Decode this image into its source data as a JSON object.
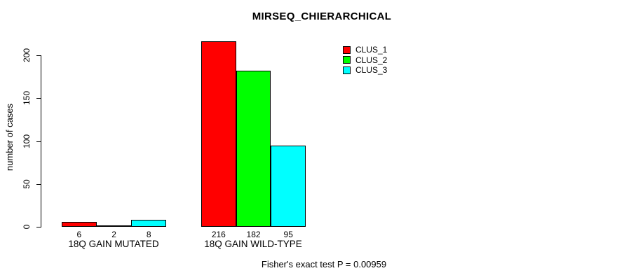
{
  "chart_data": {
    "type": "bar",
    "title": "MIRSEQ_CHIERARCHICAL",
    "xlabel": "",
    "ylabel": "number of cases",
    "categories": [
      "18Q GAIN MUTATED",
      "18Q GAIN WILD-TYPE"
    ],
    "series": [
      {
        "name": "CLUS_1",
        "color": "#ff0000",
        "values": [
          6,
          216
        ]
      },
      {
        "name": "CLUS_2",
        "color": "#00ff00",
        "values": [
          2,
          182
        ]
      },
      {
        "name": "CLUS_3",
        "color": "#00ffff",
        "values": [
          8,
          95
        ]
      }
    ],
    "bar_value_labels": [
      [
        "6",
        "2",
        "8"
      ],
      [
        "216",
        "182",
        "95"
      ]
    ],
    "yticks": [
      0,
      50,
      100,
      150,
      200
    ],
    "ylim": [
      0,
      220
    ],
    "grid": false,
    "legend_position": "top-right",
    "annotation": "Fisher's exact test P = 0.00959"
  }
}
